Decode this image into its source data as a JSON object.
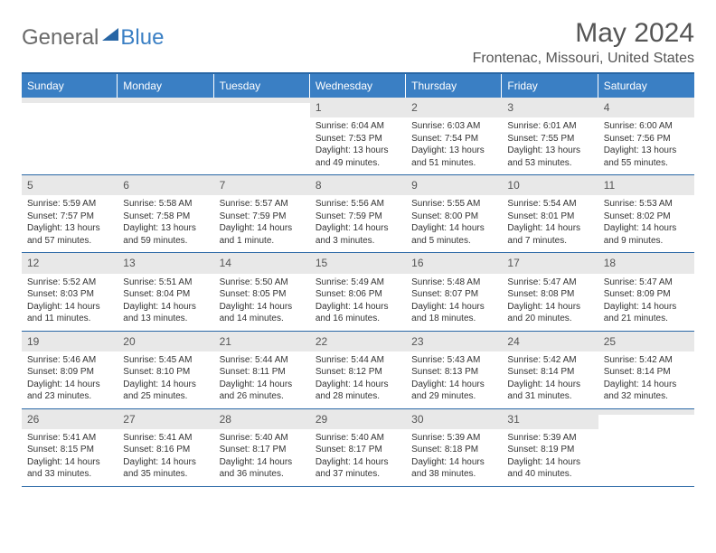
{
  "colors": {
    "header_blue": "#3a7fc4",
    "border_blue": "#2866a5",
    "daynum_bg": "#e8e8e8",
    "text_main": "#333333",
    "text_muted": "#555555",
    "logo_gray": "#6a6a6a",
    "white": "#ffffff"
  },
  "typography": {
    "title_fontsize": 30,
    "location_fontsize": 16,
    "dow_fontsize": 12,
    "daynum_fontsize": 12,
    "body_fontsize": 10
  },
  "logo": {
    "part1": "General",
    "part2": "Blue"
  },
  "title": "May 2024",
  "location": "Frontenac, Missouri, United States",
  "dow": [
    "Sunday",
    "Monday",
    "Tuesday",
    "Wednesday",
    "Thursday",
    "Friday",
    "Saturday"
  ],
  "weeks": [
    [
      {
        "n": "",
        "sr": "",
        "ss": "",
        "dl": ""
      },
      {
        "n": "",
        "sr": "",
        "ss": "",
        "dl": ""
      },
      {
        "n": "",
        "sr": "",
        "ss": "",
        "dl": ""
      },
      {
        "n": "1",
        "sr": "Sunrise: 6:04 AM",
        "ss": "Sunset: 7:53 PM",
        "dl": "Daylight: 13 hours and 49 minutes."
      },
      {
        "n": "2",
        "sr": "Sunrise: 6:03 AM",
        "ss": "Sunset: 7:54 PM",
        "dl": "Daylight: 13 hours and 51 minutes."
      },
      {
        "n": "3",
        "sr": "Sunrise: 6:01 AM",
        "ss": "Sunset: 7:55 PM",
        "dl": "Daylight: 13 hours and 53 minutes."
      },
      {
        "n": "4",
        "sr": "Sunrise: 6:00 AM",
        "ss": "Sunset: 7:56 PM",
        "dl": "Daylight: 13 hours and 55 minutes."
      }
    ],
    [
      {
        "n": "5",
        "sr": "Sunrise: 5:59 AM",
        "ss": "Sunset: 7:57 PM",
        "dl": "Daylight: 13 hours and 57 minutes."
      },
      {
        "n": "6",
        "sr": "Sunrise: 5:58 AM",
        "ss": "Sunset: 7:58 PM",
        "dl": "Daylight: 13 hours and 59 minutes."
      },
      {
        "n": "7",
        "sr": "Sunrise: 5:57 AM",
        "ss": "Sunset: 7:59 PM",
        "dl": "Daylight: 14 hours and 1 minute."
      },
      {
        "n": "8",
        "sr": "Sunrise: 5:56 AM",
        "ss": "Sunset: 7:59 PM",
        "dl": "Daylight: 14 hours and 3 minutes."
      },
      {
        "n": "9",
        "sr": "Sunrise: 5:55 AM",
        "ss": "Sunset: 8:00 PM",
        "dl": "Daylight: 14 hours and 5 minutes."
      },
      {
        "n": "10",
        "sr": "Sunrise: 5:54 AM",
        "ss": "Sunset: 8:01 PM",
        "dl": "Daylight: 14 hours and 7 minutes."
      },
      {
        "n": "11",
        "sr": "Sunrise: 5:53 AM",
        "ss": "Sunset: 8:02 PM",
        "dl": "Daylight: 14 hours and 9 minutes."
      }
    ],
    [
      {
        "n": "12",
        "sr": "Sunrise: 5:52 AM",
        "ss": "Sunset: 8:03 PM",
        "dl": "Daylight: 14 hours and 11 minutes."
      },
      {
        "n": "13",
        "sr": "Sunrise: 5:51 AM",
        "ss": "Sunset: 8:04 PM",
        "dl": "Daylight: 14 hours and 13 minutes."
      },
      {
        "n": "14",
        "sr": "Sunrise: 5:50 AM",
        "ss": "Sunset: 8:05 PM",
        "dl": "Daylight: 14 hours and 14 minutes."
      },
      {
        "n": "15",
        "sr": "Sunrise: 5:49 AM",
        "ss": "Sunset: 8:06 PM",
        "dl": "Daylight: 14 hours and 16 minutes."
      },
      {
        "n": "16",
        "sr": "Sunrise: 5:48 AM",
        "ss": "Sunset: 8:07 PM",
        "dl": "Daylight: 14 hours and 18 minutes."
      },
      {
        "n": "17",
        "sr": "Sunrise: 5:47 AM",
        "ss": "Sunset: 8:08 PM",
        "dl": "Daylight: 14 hours and 20 minutes."
      },
      {
        "n": "18",
        "sr": "Sunrise: 5:47 AM",
        "ss": "Sunset: 8:09 PM",
        "dl": "Daylight: 14 hours and 21 minutes."
      }
    ],
    [
      {
        "n": "19",
        "sr": "Sunrise: 5:46 AM",
        "ss": "Sunset: 8:09 PM",
        "dl": "Daylight: 14 hours and 23 minutes."
      },
      {
        "n": "20",
        "sr": "Sunrise: 5:45 AM",
        "ss": "Sunset: 8:10 PM",
        "dl": "Daylight: 14 hours and 25 minutes."
      },
      {
        "n": "21",
        "sr": "Sunrise: 5:44 AM",
        "ss": "Sunset: 8:11 PM",
        "dl": "Daylight: 14 hours and 26 minutes."
      },
      {
        "n": "22",
        "sr": "Sunrise: 5:44 AM",
        "ss": "Sunset: 8:12 PM",
        "dl": "Daylight: 14 hours and 28 minutes."
      },
      {
        "n": "23",
        "sr": "Sunrise: 5:43 AM",
        "ss": "Sunset: 8:13 PM",
        "dl": "Daylight: 14 hours and 29 minutes."
      },
      {
        "n": "24",
        "sr": "Sunrise: 5:42 AM",
        "ss": "Sunset: 8:14 PM",
        "dl": "Daylight: 14 hours and 31 minutes."
      },
      {
        "n": "25",
        "sr": "Sunrise: 5:42 AM",
        "ss": "Sunset: 8:14 PM",
        "dl": "Daylight: 14 hours and 32 minutes."
      }
    ],
    [
      {
        "n": "26",
        "sr": "Sunrise: 5:41 AM",
        "ss": "Sunset: 8:15 PM",
        "dl": "Daylight: 14 hours and 33 minutes."
      },
      {
        "n": "27",
        "sr": "Sunrise: 5:41 AM",
        "ss": "Sunset: 8:16 PM",
        "dl": "Daylight: 14 hours and 35 minutes."
      },
      {
        "n": "28",
        "sr": "Sunrise: 5:40 AM",
        "ss": "Sunset: 8:17 PM",
        "dl": "Daylight: 14 hours and 36 minutes."
      },
      {
        "n": "29",
        "sr": "Sunrise: 5:40 AM",
        "ss": "Sunset: 8:17 PM",
        "dl": "Daylight: 14 hours and 37 minutes."
      },
      {
        "n": "30",
        "sr": "Sunrise: 5:39 AM",
        "ss": "Sunset: 8:18 PM",
        "dl": "Daylight: 14 hours and 38 minutes."
      },
      {
        "n": "31",
        "sr": "Sunrise: 5:39 AM",
        "ss": "Sunset: 8:19 PM",
        "dl": "Daylight: 14 hours and 40 minutes."
      },
      {
        "n": "",
        "sr": "",
        "ss": "",
        "dl": ""
      }
    ]
  ]
}
